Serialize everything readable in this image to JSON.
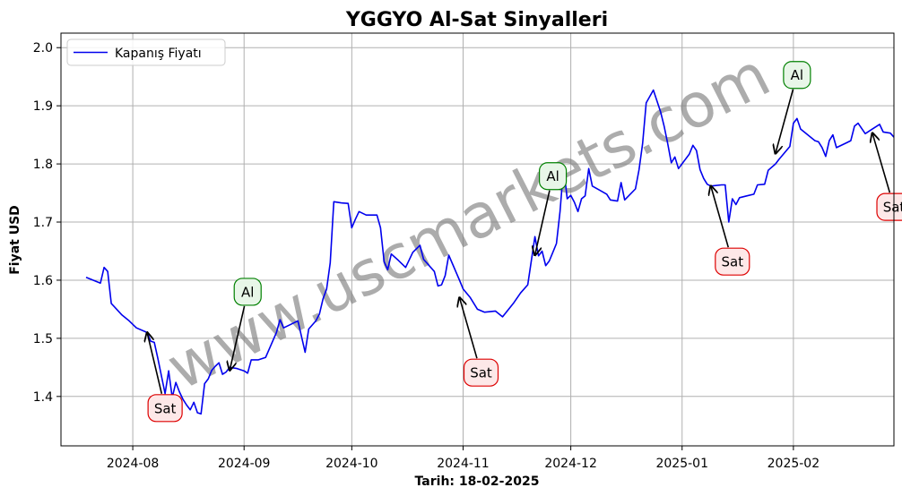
{
  "chart_data": {
    "type": "line",
    "title": "YGGYO Al-Sat Sinyalleri",
    "xlabel": "Tarih: 18-02-2025",
    "ylabel": "Fiyat USD",
    "x_range": [
      "2024-07-12",
      "2025-03-01"
    ],
    "ylim": [
      1.315,
      2.025
    ],
    "grid": true,
    "legend_position": "upper-left",
    "x_ticks": [
      "2024-08",
      "2024-09",
      "2024-10",
      "2024-11",
      "2024-12",
      "2025-01",
      "2025-02"
    ],
    "y_ticks": [
      "1.4",
      "1.5",
      "1.6",
      "1.7",
      "1.8",
      "1.9",
      "2.0"
    ],
    "series": [
      {
        "name": "Kapanış Fiyatı",
        "color": "#0000ee",
        "points": [
          [
            "2024-07-19",
            1.605
          ],
          [
            "2024-07-23",
            1.595
          ],
          [
            "2024-07-24",
            1.622
          ],
          [
            "2024-07-25",
            1.615
          ],
          [
            "2024-07-26",
            1.56
          ],
          [
            "2024-07-29",
            1.54
          ],
          [
            "2024-07-31",
            1.53
          ],
          [
            "2024-08-02",
            1.518
          ],
          [
            "2024-08-05",
            1.51
          ],
          [
            "2024-08-06",
            1.495
          ],
          [
            "2024-08-07",
            1.493
          ],
          [
            "2024-08-08",
            1.465
          ],
          [
            "2024-08-09",
            1.435
          ],
          [
            "2024-08-10",
            1.405
          ],
          [
            "2024-08-11",
            1.444
          ],
          [
            "2024-08-12",
            1.398
          ],
          [
            "2024-08-13",
            1.424
          ],
          [
            "2024-08-14",
            1.408
          ],
          [
            "2024-08-15",
            1.395
          ],
          [
            "2024-08-16",
            1.385
          ],
          [
            "2024-08-17",
            1.377
          ],
          [
            "2024-08-18",
            1.39
          ],
          [
            "2024-08-19",
            1.372
          ],
          [
            "2024-08-20",
            1.37
          ],
          [
            "2024-08-21",
            1.422
          ],
          [
            "2024-08-22",
            1.43
          ],
          [
            "2024-08-23",
            1.445
          ],
          [
            "2024-08-24",
            1.452
          ],
          [
            "2024-08-25",
            1.458
          ],
          [
            "2024-08-26",
            1.438
          ],
          [
            "2024-08-27",
            1.442
          ],
          [
            "2024-08-28",
            1.45
          ],
          [
            "2024-08-30",
            1.448
          ],
          [
            "2024-09-01",
            1.444
          ],
          [
            "2024-09-02",
            1.44
          ],
          [
            "2024-09-03",
            1.463
          ],
          [
            "2024-09-05",
            1.463
          ],
          [
            "2024-09-07",
            1.467
          ],
          [
            "2024-09-10",
            1.51
          ],
          [
            "2024-09-11",
            1.532
          ],
          [
            "2024-09-12",
            1.518
          ],
          [
            "2024-09-14",
            1.524
          ],
          [
            "2024-09-16",
            1.53
          ],
          [
            "2024-09-18",
            1.476
          ],
          [
            "2024-09-19",
            1.516
          ],
          [
            "2024-09-21",
            1.53
          ],
          [
            "2024-09-22",
            1.542
          ],
          [
            "2024-09-23",
            1.568
          ],
          [
            "2024-09-24",
            1.585
          ],
          [
            "2024-09-25",
            1.63
          ],
          [
            "2024-09-26",
            1.735
          ],
          [
            "2024-09-28",
            1.733
          ],
          [
            "2024-09-30",
            1.732
          ],
          [
            "2024-10-01",
            1.69
          ],
          [
            "2024-10-02",
            1.705
          ],
          [
            "2024-10-03",
            1.718
          ],
          [
            "2024-10-05",
            1.712
          ],
          [
            "2024-10-08",
            1.712
          ],
          [
            "2024-10-09",
            1.69
          ],
          [
            "2024-10-10",
            1.632
          ],
          [
            "2024-10-11",
            1.618
          ],
          [
            "2024-10-12",
            1.645
          ],
          [
            "2024-10-14",
            1.634
          ],
          [
            "2024-10-16",
            1.622
          ],
          [
            "2024-10-18",
            1.648
          ],
          [
            "2024-10-20",
            1.66
          ],
          [
            "2024-10-21",
            1.636
          ],
          [
            "2024-10-24",
            1.615
          ],
          [
            "2024-10-25",
            1.59
          ],
          [
            "2024-10-26",
            1.592
          ],
          [
            "2024-10-27",
            1.608
          ],
          [
            "2024-10-28",
            1.643
          ],
          [
            "2024-10-31",
            1.6
          ],
          [
            "2024-11-01",
            1.585
          ],
          [
            "2024-11-03",
            1.57
          ],
          [
            "2024-11-05",
            1.55
          ],
          [
            "2024-11-07",
            1.545
          ],
          [
            "2024-11-10",
            1.547
          ],
          [
            "2024-11-12",
            1.537
          ],
          [
            "2024-11-15",
            1.56
          ],
          [
            "2024-11-17",
            1.578
          ],
          [
            "2024-11-19",
            1.592
          ],
          [
            "2024-11-21",
            1.675
          ],
          [
            "2024-11-22",
            1.642
          ],
          [
            "2024-11-23",
            1.65
          ],
          [
            "2024-11-24",
            1.625
          ],
          [
            "2024-11-25",
            1.633
          ],
          [
            "2024-11-26",
            1.648
          ],
          [
            "2024-11-27",
            1.663
          ],
          [
            "2024-11-28",
            1.718
          ],
          [
            "2024-11-29",
            1.795
          ],
          [
            "2024-11-30",
            1.74
          ],
          [
            "2024-12-01",
            1.746
          ],
          [
            "2024-12-02",
            1.734
          ],
          [
            "2024-12-03",
            1.718
          ],
          [
            "2024-12-04",
            1.74
          ],
          [
            "2024-12-05",
            1.745
          ],
          [
            "2024-12-06",
            1.792
          ],
          [
            "2024-12-07",
            1.762
          ],
          [
            "2024-12-09",
            1.755
          ],
          [
            "2024-12-11",
            1.748
          ],
          [
            "2024-12-12",
            1.738
          ],
          [
            "2024-12-14",
            1.736
          ],
          [
            "2024-12-15",
            1.768
          ],
          [
            "2024-12-16",
            1.738
          ],
          [
            "2024-12-19",
            1.757
          ],
          [
            "2024-12-20",
            1.79
          ],
          [
            "2024-12-21",
            1.835
          ],
          [
            "2024-12-22",
            1.905
          ],
          [
            "2024-12-24",
            1.927
          ],
          [
            "2024-12-26",
            1.89
          ],
          [
            "2024-12-27",
            1.865
          ],
          [
            "2024-12-28",
            1.835
          ],
          [
            "2024-12-29",
            1.802
          ],
          [
            "2024-12-30",
            1.812
          ],
          [
            "2024-12-31",
            1.792
          ],
          [
            "2025-01-03",
            1.817
          ],
          [
            "2025-01-04",
            1.832
          ],
          [
            "2025-01-05",
            1.823
          ],
          [
            "2025-01-06",
            1.79
          ],
          [
            "2025-01-07",
            1.775
          ],
          [
            "2025-01-08",
            1.765
          ],
          [
            "2025-01-09",
            1.762
          ],
          [
            "2025-01-12",
            1.764
          ],
          [
            "2025-01-13",
            1.764
          ],
          [
            "2025-01-14",
            1.7
          ],
          [
            "2025-01-15",
            1.74
          ],
          [
            "2025-01-16",
            1.73
          ],
          [
            "2025-01-17",
            1.742
          ],
          [
            "2025-01-19",
            1.745
          ],
          [
            "2025-01-21",
            1.748
          ],
          [
            "2025-01-22",
            1.764
          ],
          [
            "2025-01-24",
            1.765
          ],
          [
            "2025-01-25",
            1.789
          ],
          [
            "2025-01-27",
            1.8
          ],
          [
            "2025-01-28",
            1.808
          ],
          [
            "2025-01-31",
            1.83
          ],
          [
            "2025-02-01",
            1.87
          ],
          [
            "2025-02-02",
            1.878
          ],
          [
            "2025-02-03",
            1.86
          ],
          [
            "2025-02-04",
            1.855
          ],
          [
            "2025-02-05",
            1.85
          ],
          [
            "2025-02-06",
            1.845
          ],
          [
            "2025-02-07",
            1.84
          ],
          [
            "2025-02-08",
            1.838
          ],
          [
            "2025-02-09",
            1.828
          ],
          [
            "2025-02-10",
            1.813
          ],
          [
            "2025-02-11",
            1.84
          ],
          [
            "2025-02-12",
            1.85
          ],
          [
            "2025-02-13",
            1.828
          ],
          [
            "2025-02-16",
            1.837
          ],
          [
            "2025-02-17",
            1.84
          ],
          [
            "2025-02-18",
            1.865
          ],
          [
            "2025-02-19",
            1.87
          ],
          [
            "2025-02-21",
            1.852
          ],
          [
            "2025-02-23",
            1.86
          ],
          [
            "2025-02-25",
            1.868
          ],
          [
            "2025-02-26",
            1.855
          ],
          [
            "2025-02-28",
            1.853
          ],
          [
            "2025-03-01",
            1.846
          ]
        ]
      }
    ],
    "annotations": [
      {
        "text": "Sat",
        "kind": "sell",
        "target": [
          "2024-08-05",
          1.51
        ],
        "label_at": [
          "2024-08-10",
          1.38
        ]
      },
      {
        "text": "Al",
        "kind": "buy",
        "target": [
          "2024-08-28",
          1.445
        ],
        "label_at": [
          "2024-09-02",
          1.58
        ]
      },
      {
        "text": "Sat",
        "kind": "sell",
        "target": [
          "2024-10-31",
          1.57
        ],
        "label_at": [
          "2024-11-06",
          1.441
        ]
      },
      {
        "text": "Al",
        "kind": "buy",
        "target": [
          "2024-11-21",
          1.643
        ],
        "label_at": [
          "2024-11-26",
          1.779
        ]
      },
      {
        "text": "Sat",
        "kind": "sell",
        "target": [
          "2025-01-09",
          1.762
        ],
        "label_at": [
          "2025-01-15",
          1.632
        ]
      },
      {
        "text": "Al",
        "kind": "buy",
        "target": [
          "2025-01-27",
          1.818
        ],
        "label_at": [
          "2025-02-02",
          1.953
        ]
      },
      {
        "text": "Sat",
        "kind": "sell",
        "target": [
          "2025-02-23",
          1.853
        ],
        "label_at": [
          "2025-03-01",
          1.726
        ]
      }
    ],
    "watermark": "www.uscmarkets.com",
    "colors": {
      "line": "#0000ee",
      "buy_border": "#008000",
      "buy_fill": "#e8f6e8",
      "sell_border": "#dd0000",
      "sell_fill": "#fde8e8",
      "grid": "#b0b0b0",
      "watermark": "#808080"
    }
  }
}
